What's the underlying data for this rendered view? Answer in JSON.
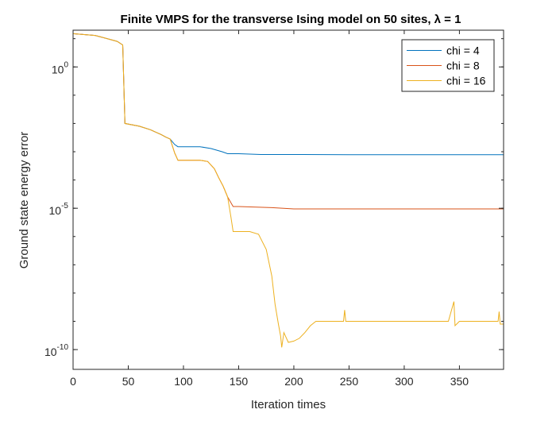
{
  "chart_data": {
    "type": "line",
    "title": "Finite VMPS for the transverse Ising model on 50 sites, λ = 1",
    "xlabel": "Iteration times",
    "ylabel": "Ground state energy error",
    "xlim": [
      0,
      390
    ],
    "ylim_log10": [
      -10.7,
      1.3
    ],
    "y_scale": "log",
    "x_ticks": [
      0,
      50,
      100,
      150,
      200,
      250,
      300,
      350
    ],
    "y_ticks": [
      {
        "value": 1,
        "label_base": "10",
        "label_exp": "0"
      },
      {
        "value": 1e-05,
        "label_base": "10",
        "label_exp": "-5"
      },
      {
        "value": 1e-10,
        "label_base": "10",
        "label_exp": "-10"
      }
    ],
    "legend_position": "top-right",
    "grid": false,
    "series": [
      {
        "name": "chi = 4",
        "color": "#0072BD",
        "points": [
          [
            0,
            15
          ],
          [
            20,
            13
          ],
          [
            40,
            8
          ],
          [
            45,
            6
          ],
          [
            47,
            0.01
          ],
          [
            60,
            0.008
          ],
          [
            70,
            0.006
          ],
          [
            80,
            0.004
          ],
          [
            84,
            0.0033
          ],
          [
            88,
            0.0028
          ],
          [
            92,
            0.0018
          ],
          [
            95,
            0.0015
          ],
          [
            100,
            0.0015
          ],
          [
            115,
            0.0015
          ],
          [
            125,
            0.0013
          ],
          [
            135,
            0.001
          ],
          [
            140,
            0.00085
          ],
          [
            150,
            0.00085
          ],
          [
            170,
            0.0008
          ],
          [
            200,
            0.0008
          ],
          [
            250,
            0.00079
          ],
          [
            300,
            0.00079
          ],
          [
            350,
            0.00079
          ],
          [
            390,
            0.00079
          ]
        ]
      },
      {
        "name": "chi = 8",
        "color": "#D95319",
        "points": [
          [
            0,
            15
          ],
          [
            20,
            13
          ],
          [
            40,
            8
          ],
          [
            45,
            6
          ],
          [
            47,
            0.01
          ],
          [
            60,
            0.008
          ],
          [
            70,
            0.006
          ],
          [
            80,
            0.004
          ],
          [
            84,
            0.0033
          ],
          [
            88,
            0.0028
          ],
          [
            92,
            0.0009
          ],
          [
            95,
            0.0005
          ],
          [
            115,
            0.0005
          ],
          [
            122,
            0.00045
          ],
          [
            128,
            0.00025
          ],
          [
            132,
            0.00012
          ],
          [
            136,
            6e-05
          ],
          [
            140,
            2.5e-05
          ],
          [
            145,
            1.15e-05
          ],
          [
            150,
            1.15e-05
          ],
          [
            180,
            1.05e-05
          ],
          [
            200,
            9.5e-06
          ],
          [
            250,
            9.5e-06
          ],
          [
            300,
            9.5e-06
          ],
          [
            350,
            9.5e-06
          ],
          [
            390,
            9.5e-06
          ]
        ]
      },
      {
        "name": "chi = 16",
        "color": "#EDB120",
        "points": [
          [
            0,
            15
          ],
          [
            20,
            13
          ],
          [
            40,
            8
          ],
          [
            45,
            6
          ],
          [
            47,
            0.01
          ],
          [
            60,
            0.008
          ],
          [
            70,
            0.006
          ],
          [
            80,
            0.004
          ],
          [
            84,
            0.0033
          ],
          [
            88,
            0.0028
          ],
          [
            92,
            0.0009
          ],
          [
            95,
            0.0005
          ],
          [
            115,
            0.0005
          ],
          [
            122,
            0.00045
          ],
          [
            128,
            0.00025
          ],
          [
            132,
            0.00012
          ],
          [
            136,
            6e-05
          ],
          [
            140,
            2.5e-05
          ],
          [
            143,
            5e-06
          ],
          [
            145,
            1.5e-06
          ],
          [
            160,
            1.5e-06
          ],
          [
            168,
            1.2e-06
          ],
          [
            175,
            3.5e-07
          ],
          [
            180,
            4e-08
          ],
          [
            183,
            4e-09
          ],
          [
            186,
            8e-10
          ],
          [
            188,
            3e-10
          ],
          [
            189,
            1.2e-10
          ],
          [
            191,
            4e-10
          ],
          [
            195,
            1.8e-10
          ],
          [
            200,
            2e-10
          ],
          [
            205,
            2.5e-10
          ],
          [
            210,
            4e-10
          ],
          [
            215,
            7e-10
          ],
          [
            220,
            1e-09
          ],
          [
            230,
            1e-09
          ],
          [
            245,
            1e-09
          ],
          [
            246,
            2.5e-09
          ],
          [
            247,
            1e-09
          ],
          [
            300,
            1e-09
          ],
          [
            340,
            1e-09
          ],
          [
            345,
            5e-09
          ],
          [
            346,
            7e-10
          ],
          [
            350,
            1e-09
          ],
          [
            385,
            1e-09
          ],
          [
            386,
            2.2e-09
          ],
          [
            387,
            8e-10
          ],
          [
            390,
            8e-10
          ]
        ]
      }
    ]
  }
}
